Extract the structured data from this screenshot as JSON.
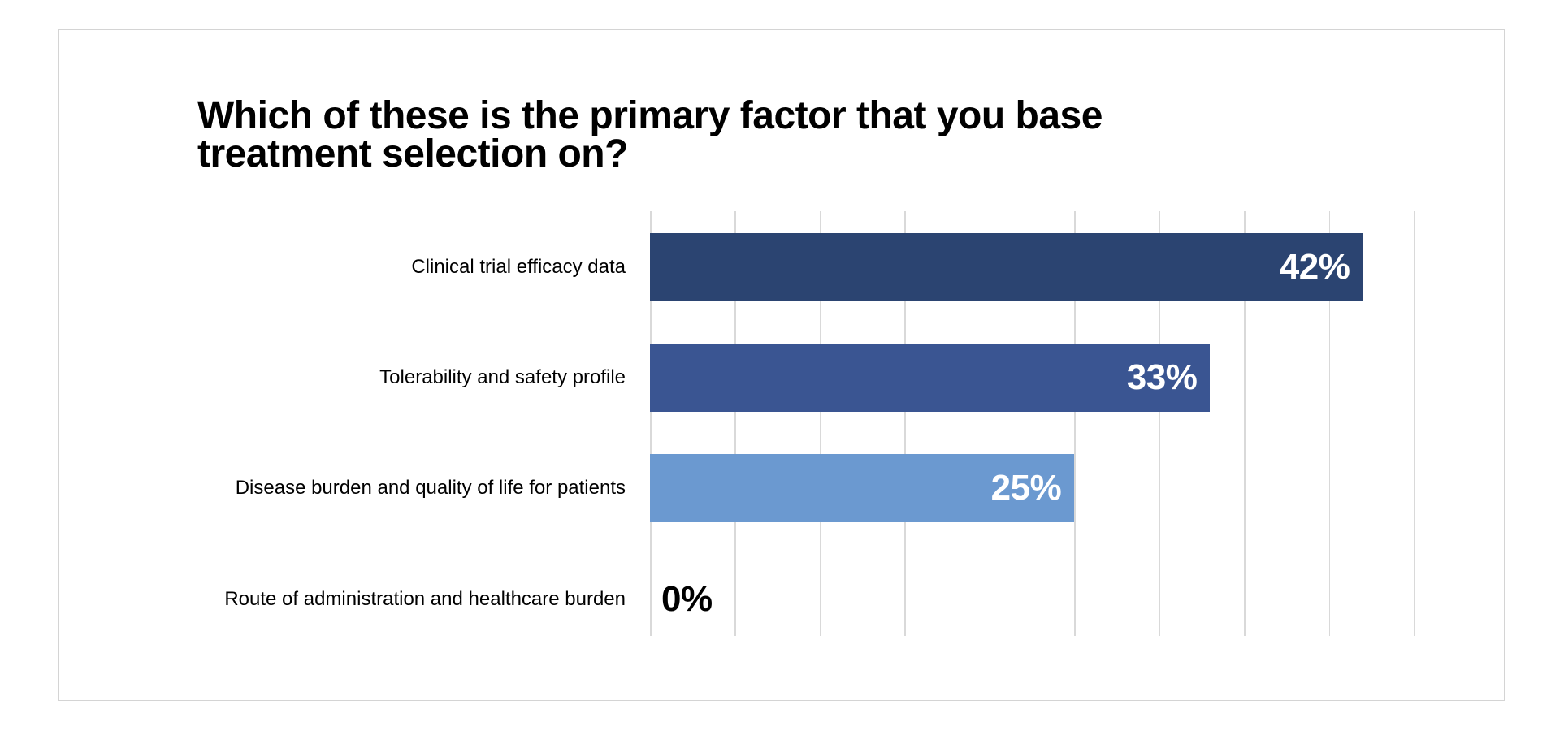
{
  "title": {
    "lines": [
      "Which of these is the primary factor that you base",
      "treatment selection on?"
    ]
  },
  "chart_data": {
    "type": "bar",
    "orientation": "horizontal",
    "title": "Which of these is the primary factor that you base treatment selection on?",
    "categories": [
      "Clinical trial efficacy data",
      "Tolerability and safety profile",
      "Disease burden and quality of life for patients",
      "Route of administration and healthcare burden"
    ],
    "values": [
      42,
      33,
      25,
      0
    ],
    "value_labels": [
      "42%",
      "33%",
      "25%",
      "0%"
    ],
    "bar_colors": [
      "#2B4471",
      "#3A5592",
      "#6B99D0",
      null
    ],
    "xlim": [
      0,
      45
    ],
    "gridline_step_pct": 5,
    "grid": true,
    "gridline_color": "#D9D9D9",
    "value_label_color_inside": "#FFFFFF",
    "value_label_color_zero": "#000000",
    "xlabel": "",
    "ylabel": "",
    "legend": "none",
    "axis_tick_labels": "none"
  }
}
